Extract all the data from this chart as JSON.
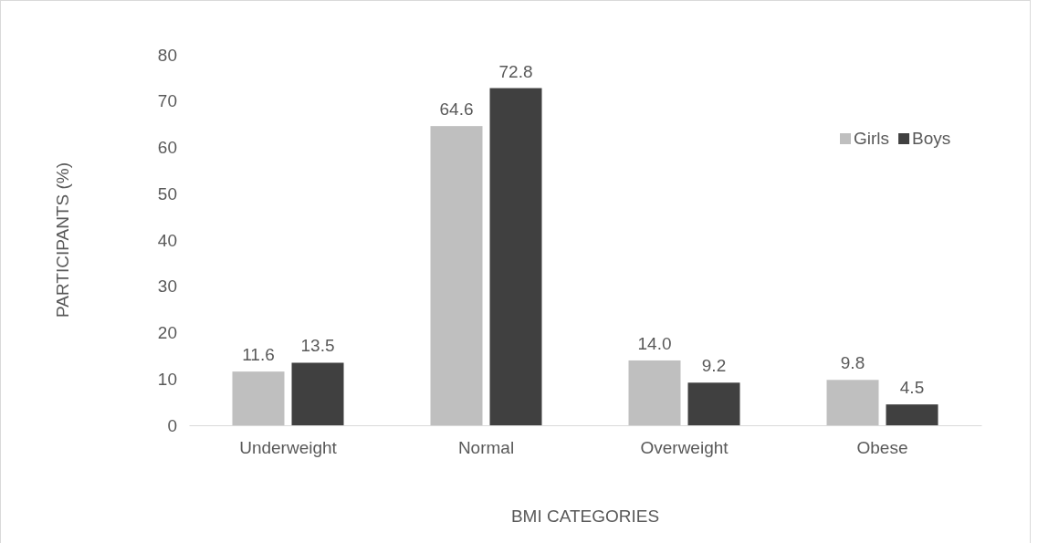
{
  "chart_data": {
    "type": "bar",
    "xlabel": "BMI CATEGORIES",
    "ylabel": "PARTICIPANTS (%)",
    "categories": [
      "Underweight",
      "Normal",
      "Overweight",
      "Obese"
    ],
    "series": [
      {
        "name": "Girls",
        "color": "#bfbfbf",
        "values": [
          11.6,
          64.6,
          14.0,
          9.8
        ],
        "value_labels": [
          "11.6",
          "64.6",
          "14.0",
          "9.8"
        ]
      },
      {
        "name": "Boys",
        "color": "#404040",
        "values": [
          13.5,
          72.8,
          9.2,
          4.5
        ],
        "value_labels": [
          "13.5",
          "72.8",
          "9.2",
          "4.5"
        ]
      }
    ],
    "ylim": [
      0,
      80
    ],
    "yticks": [
      0,
      10,
      20,
      30,
      40,
      50,
      60,
      70,
      80
    ],
    "grid": false,
    "legend": "top right"
  }
}
